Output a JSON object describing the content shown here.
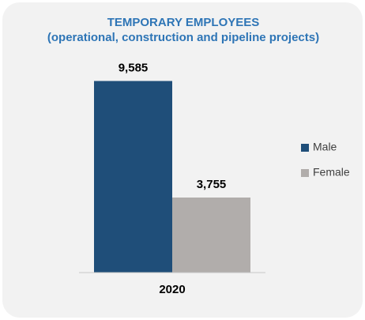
{
  "chart_data": {
    "type": "bar",
    "title": "TEMPORARY EMPLOYEES",
    "subtitle": "(operational, construction and pipeline projects)",
    "categories": [
      "2020"
    ],
    "series": [
      {
        "name": "Male",
        "color": "#1f4e79",
        "values": [
          9585
        ],
        "value_labels": [
          "9,585"
        ]
      },
      {
        "name": "Female",
        "color": "#b1adab",
        "values": [
          3755
        ],
        "value_labels": [
          "3,755"
        ]
      }
    ],
    "ylim": [
      0,
      10000
    ],
    "legend": "right"
  }
}
